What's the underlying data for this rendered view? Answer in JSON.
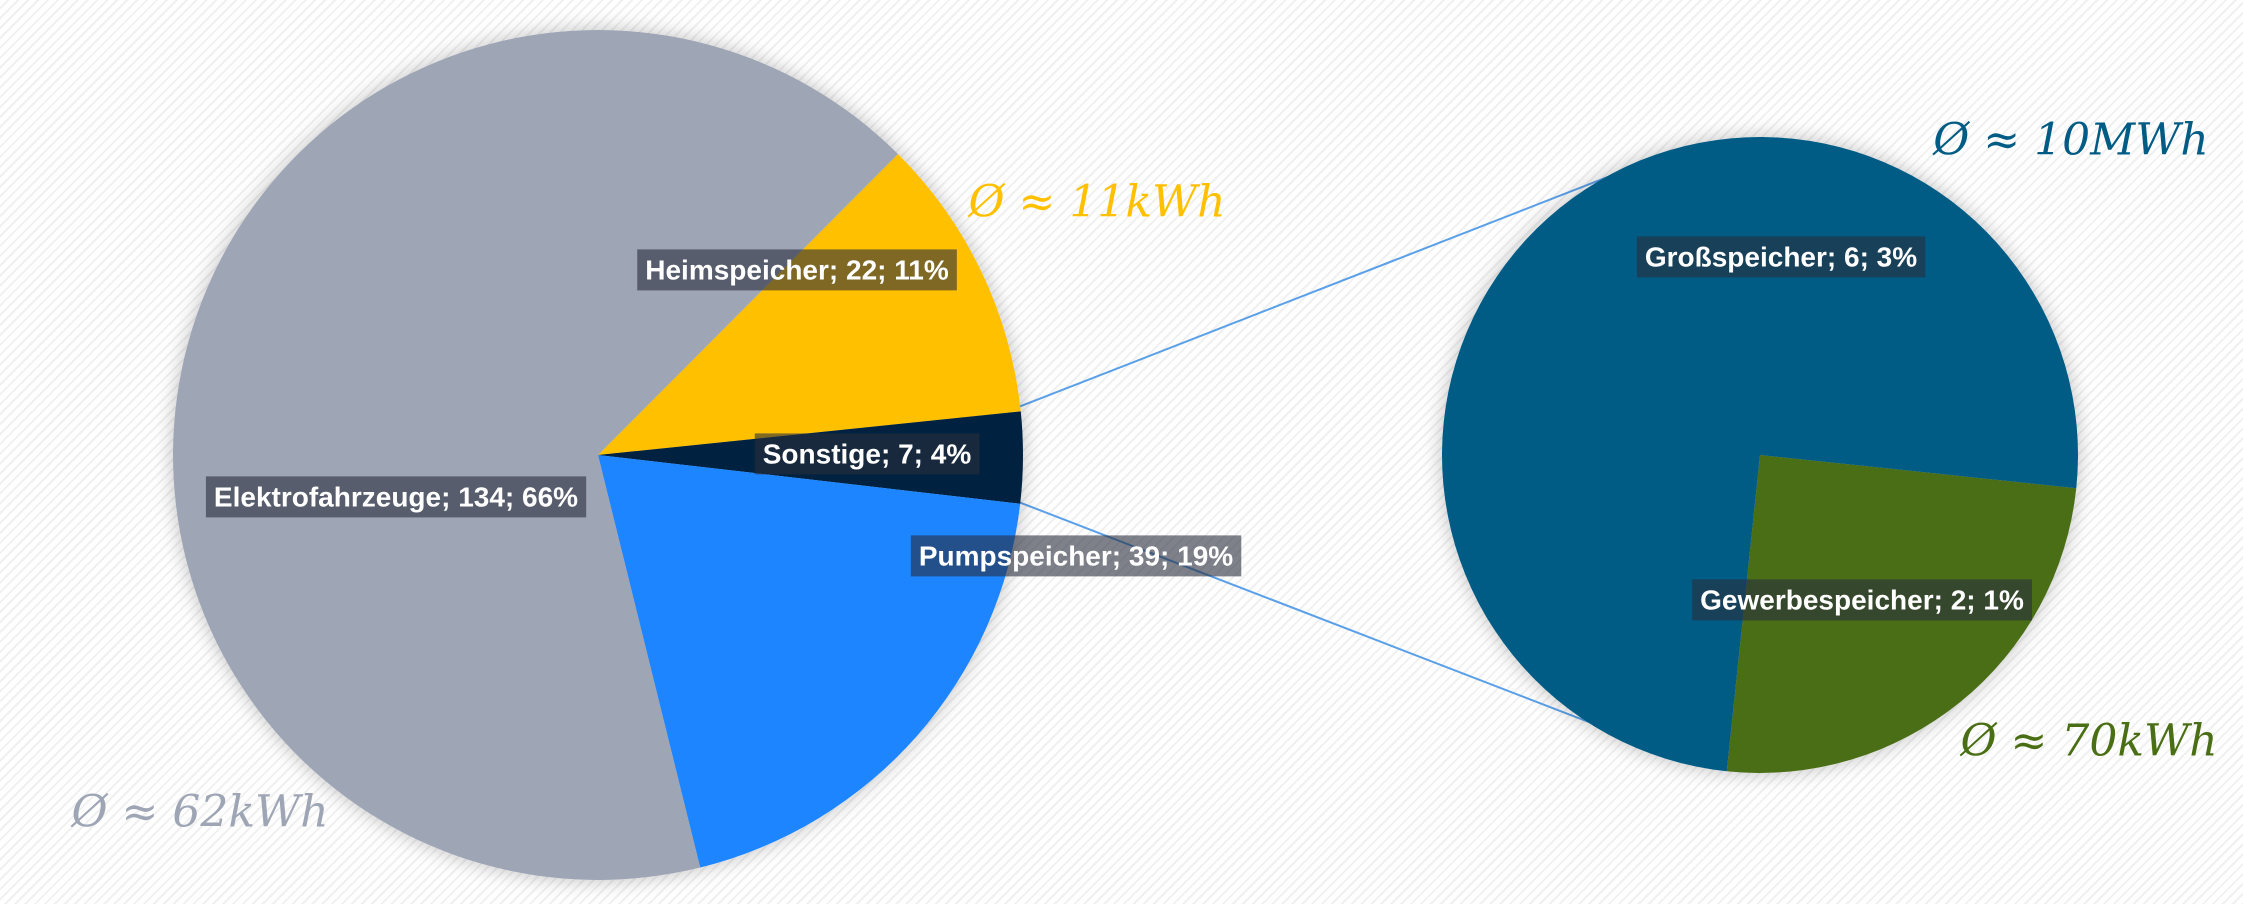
{
  "chart_data": [
    {
      "type": "pie",
      "categories": [
        "Heimspeicher",
        "Sonstige",
        "Pumpspeicher",
        "Elektrofahrzeuge"
      ],
      "values": [
        22,
        7,
        39,
        134
      ],
      "value_labels": [
        "Heimspeicher; 22; 11%",
        "Sonstige; 7; 4%",
        "Pumpspeicher; 39; 19%",
        "Elektrofahrzeuge; 134; 66%"
      ],
      "colors": [
        "#ffc000",
        "#00213f",
        "#1a85ff",
        "#9ea5b5"
      ],
      "annotations": [
        {
          "text": "Ø ≈ 62kWh",
          "color": "#9ea5b5"
        },
        {
          "text": "Ø ≈ 11kWh",
          "color": "#ffc000"
        }
      ]
    },
    {
      "type": "pie",
      "categories": [
        "Gewerbespeicher",
        "Großspeicher"
      ],
      "values": [
        2,
        6
      ],
      "value_labels": [
        "Gewerbespeicher; 2; 1%",
        "Großspeicher; 6; 3%"
      ],
      "colors": [
        "#4a6e14",
        "#005b85"
      ],
      "annotations": [
        {
          "text": "Ø ≈ 10MWh",
          "color": "#005b85"
        },
        {
          "text": "Ø ≈ 70kWh",
          "color": "#4a6e14"
        }
      ]
    }
  ]
}
